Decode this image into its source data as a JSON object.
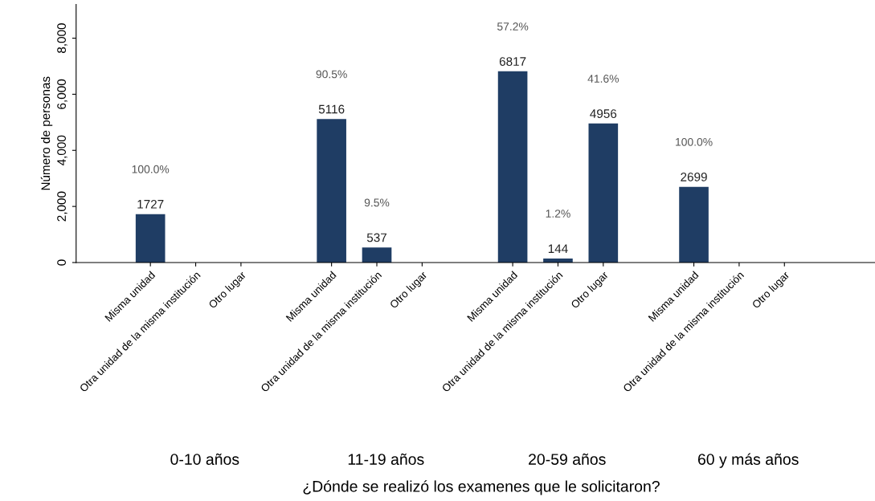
{
  "chart_data": {
    "type": "bar",
    "ylabel": "Número de personas",
    "categories": [
      "Misma unidad",
      "Otra unidad de la misma institución",
      "Otro lugar",
      "Misma unidad",
      "Otra unidad de la misma institución",
      "Otro lugar",
      "Misma unidad",
      "Otra unidad de la misma institución",
      "Otro lugar",
      "Misma unidad",
      "Otra unidad de la misma institución",
      "Otro lugar"
    ],
    "values": [
      1727,
      null,
      null,
      5116,
      537,
      null,
      6817,
      144,
      4956,
      2699,
      null,
      null
    ],
    "data_labels": true,
    "color": "#1f3d64",
    "ylim": [
      0,
      9200
    ],
    "yticks": [
      {
        "value": 0,
        "label": "0"
      },
      {
        "value": 2000,
        "label": "2,000"
      },
      {
        "value": 4000,
        "label": "4,000"
      },
      {
        "value": 6000,
        "label": "6,000"
      },
      {
        "value": 8000,
        "label": "8,000"
      }
    ],
    "annotations": [
      "0-10 años",
      "11-19 años",
      "20-59 años",
      "60 y más años",
      "¿Dónde se realizó los examenes que le solicitaron?",
      "100.0%",
      "90.5%",
      "9.5%",
      "57.2%",
      "1.2%",
      "41.6%",
      "100.0%"
    ],
    "grid": false,
    "legend": false
  }
}
